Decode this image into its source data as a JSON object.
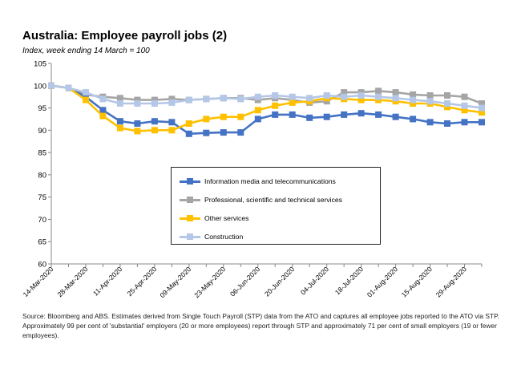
{
  "title": "Australia:  Employee payroll jobs (2)",
  "subtitle": "Index, week ending 14 March = 100",
  "source": "Source: Bloomberg and ABS.  Estimates derived from Single Touch Payroll (STP) data from the ATO and captures all employee jobs reported to the ATO via STP.  Approximately 99 per cent of 'substantial' employers (20 or more employees) report through STP and approximately 71 per cent of small employers (19 or fewer employees).",
  "chart_data": {
    "type": "line",
    "x_tick_labels": [
      "14-Mar-2020",
      "28-Mar-2020",
      "11-Apr-2020",
      "25-Apr-2020",
      "09-May-2020",
      "23-May-2020",
      "06-Jun-2020",
      "20-Jun-2020",
      "04-Jul-2020",
      "18-Jul-2020",
      "01-Aug-2020",
      "15-Aug-2020",
      "29-Aug-2020"
    ],
    "x": [
      "14-Mar-2020",
      "21-Mar-2020",
      "28-Mar-2020",
      "04-Apr-2020",
      "11-Apr-2020",
      "18-Apr-2020",
      "25-Apr-2020",
      "02-May-2020",
      "09-May-2020",
      "16-May-2020",
      "23-May-2020",
      "30-May-2020",
      "06-Jun-2020",
      "13-Jun-2020",
      "20-Jun-2020",
      "27-Jun-2020",
      "04-Jul-2020",
      "11-Jul-2020",
      "18-Jul-2020",
      "25-Jul-2020",
      "01-Aug-2020",
      "08-Aug-2020",
      "15-Aug-2020",
      "22-Aug-2020",
      "29-Aug-2020",
      "05-Sep-2020"
    ],
    "ylim": [
      60,
      105
    ],
    "y_ticks": [
      60,
      65,
      70,
      75,
      80,
      85,
      90,
      95,
      100,
      105
    ],
    "grid": false,
    "legend_position": "center",
    "series": [
      {
        "name": "Information media and telecommunications",
        "color": "#4472C4",
        "values": [
          100,
          99.5,
          97.5,
          94.5,
          92,
          91.5,
          92,
          91.8,
          89.2,
          89.4,
          89.5,
          89.5,
          92.5,
          93.5,
          93.5,
          92.8,
          93,
          93.5,
          93.8,
          93.5,
          93,
          92.5,
          91.8,
          91.5,
          91.8,
          91.8
        ]
      },
      {
        "name": "Professional, scientific and technical services",
        "color": "#A5A5A5",
        "values": [
          100,
          99.5,
          98,
          97.5,
          97.2,
          96.8,
          96.8,
          97,
          96.8,
          97,
          97.2,
          97.2,
          96.8,
          97.2,
          96.8,
          96.2,
          96.5,
          98.5,
          98.5,
          98.8,
          98.5,
          98,
          97.8,
          97.8,
          97.5,
          96
        ]
      },
      {
        "name": "Other services",
        "color": "#FFC000",
        "values": [
          100,
          99.5,
          96.8,
          93.2,
          90.5,
          89.8,
          90,
          90,
          91.5,
          92.5,
          93,
          93,
          94.5,
          95.5,
          96.2,
          96.5,
          97.2,
          97,
          96.8,
          96.8,
          96.5,
          96,
          96,
          95.2,
          94.5,
          94
        ]
      },
      {
        "name": "Construction",
        "color": "#B4C7E7",
        "values": [
          100,
          99.5,
          98.5,
          97,
          96,
          96,
          96,
          96.2,
          96.8,
          97,
          97.2,
          97,
          97.5,
          97.8,
          97.5,
          97.2,
          97.8,
          97.5,
          97.8,
          97.5,
          97.2,
          96.8,
          96.5,
          96,
          95.5,
          95
        ]
      }
    ]
  }
}
